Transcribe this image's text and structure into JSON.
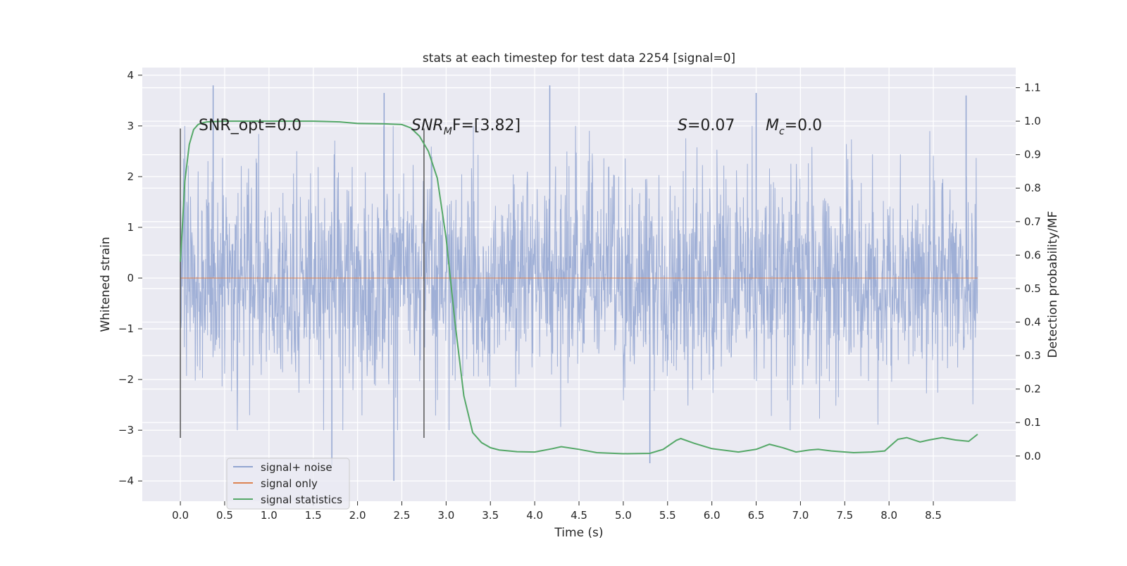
{
  "chart_data": {
    "type": "line",
    "title": "stats at each timestep for test data 2254 [signal=0]",
    "xlabel": "Time (s)",
    "ylabel": "Whitened strain",
    "y2label": "Detection probability/MF",
    "xlim": [
      -0.43,
      9.43
    ],
    "ylim": [
      -4.4,
      4.15
    ],
    "y2lim": [
      -0.135,
      1.16
    ],
    "x_ticks": [
      "0.0",
      "0.5",
      "1.0",
      "1.5",
      "2.0",
      "2.5",
      "3.0",
      "3.5",
      "4.0",
      "4.5",
      "5.0",
      "5.5",
      "6.0",
      "6.5",
      "7.0",
      "7.5",
      "8.0",
      "8.5"
    ],
    "y_ticks": [
      "4",
      "3",
      "2",
      "1",
      "0",
      "−1",
      "−2",
      "−3",
      "−4"
    ],
    "y2_ticks": [
      "1.1",
      "1.0",
      "0.9",
      "0.8",
      "0.7",
      "0.6",
      "0.5",
      "0.4",
      "0.3",
      "0.2",
      "0.1",
      "0.0"
    ],
    "grid": true,
    "legend_position": "lower-left",
    "legend": [
      "signal+ noise",
      "signal only",
      "signal statistics"
    ],
    "annotations": {
      "snr_opt": "SNR_opt=0.0",
      "snr_mf_main": "SNR",
      "snr_mf_sub": "M",
      "snr_mf_rest": "F=[3.82]",
      "s_main": "S",
      "s_rest": "=0.07",
      "mc_main": "M",
      "mc_sub": "c",
      "mc_rest": "=0.0"
    },
    "vertical_markers_x": [
      0.0,
      2.75
    ],
    "series": [
      {
        "name": "signal+ noise",
        "axis": "left",
        "color": "#92a5d1",
        "x_range": [
          0.0,
          9.0
        ],
        "mean": 0.0,
        "envelope": [
          -3.0,
          3.0
        ],
        "sample_peaks": [
          [
            0.37,
            3.8
          ],
          [
            2.3,
            3.65
          ],
          [
            4.17,
            3.8
          ],
          [
            6.5,
            3.65
          ],
          [
            8.87,
            3.6
          ],
          [
            2.41,
            -4.0
          ],
          [
            1.71,
            -3.7
          ],
          [
            5.3,
            -3.65
          ]
        ]
      },
      {
        "name": "signal only",
        "axis": "left",
        "color": "#dd8452",
        "x": [
          0.0,
          9.0
        ],
        "y": [
          0.0,
          0.0
        ]
      },
      {
        "name": "signal statistics",
        "axis": "right",
        "color": "#55a868",
        "x": [
          0.0,
          0.05,
          0.1,
          0.15,
          0.2,
          0.25,
          0.3,
          0.5,
          1.0,
          1.5,
          1.8,
          2.0,
          2.3,
          2.5,
          2.6,
          2.7,
          2.8,
          2.9,
          3.0,
          3.1,
          3.2,
          3.3,
          3.4,
          3.5,
          3.6,
          3.8,
          4.0,
          4.2,
          4.3,
          4.5,
          4.7,
          5.0,
          5.3,
          5.45,
          5.6,
          5.65,
          5.8,
          6.0,
          6.3,
          6.5,
          6.65,
          6.8,
          6.95,
          7.1,
          7.2,
          7.35,
          7.6,
          7.8,
          7.95,
          8.1,
          8.2,
          8.35,
          8.45,
          8.6,
          8.75,
          8.9,
          9.0
        ],
        "y": [
          0.58,
          0.82,
          0.93,
          0.975,
          0.99,
          0.995,
          0.998,
          1.0,
          1.0,
          1.0,
          0.998,
          0.993,
          0.992,
          0.99,
          0.98,
          0.955,
          0.91,
          0.83,
          0.65,
          0.4,
          0.18,
          0.07,
          0.04,
          0.025,
          0.018,
          0.013,
          0.012,
          0.022,
          0.028,
          0.02,
          0.01,
          0.007,
          0.008,
          0.02,
          0.047,
          0.052,
          0.038,
          0.022,
          0.012,
          0.02,
          0.035,
          0.025,
          0.012,
          0.018,
          0.02,
          0.015,
          0.01,
          0.012,
          0.015,
          0.05,
          0.055,
          0.042,
          0.048,
          0.055,
          0.048,
          0.044,
          0.065
        ]
      }
    ]
  }
}
